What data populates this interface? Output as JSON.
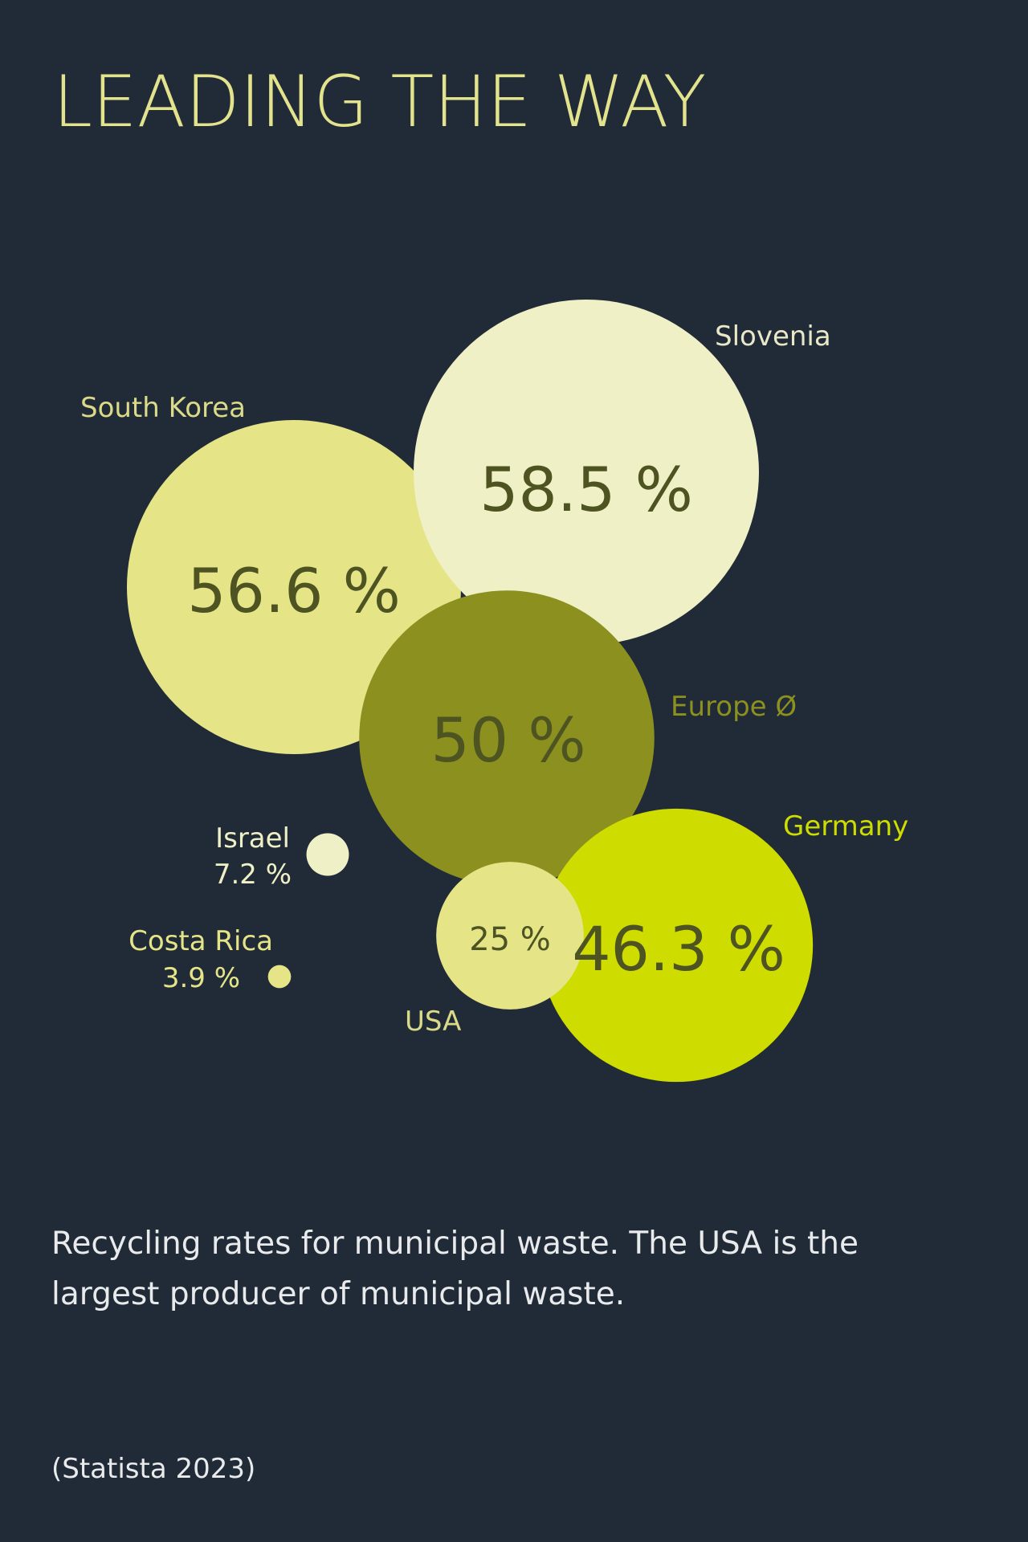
{
  "chart_data": {
    "type": "bubble",
    "title": "LEADING THE WAY",
    "categories": [
      "Slovenia",
      "South Korea",
      "Europe Ø",
      "Germany",
      "USA",
      "Israel",
      "Costa Rica"
    ],
    "values": [
      58.5,
      56.6,
      50,
      46.3,
      25,
      7.2,
      3.9
    ],
    "value_labels": [
      "58.5 %",
      "56.6 %",
      "50 %",
      "46.3 %",
      "25 %",
      "7.2 %",
      "3.9 %"
    ],
    "colors": [
      "#eff0c6",
      "#e5e588",
      "#8b901f",
      "#cedc00",
      "#e5e588",
      "#eff0c6",
      "#e5e588"
    ],
    "description": [
      "Recycling rates for municipal waste. The USA is the",
      "largest producer of municipal waste."
    ],
    "source": "(Statista 2023)"
  }
}
